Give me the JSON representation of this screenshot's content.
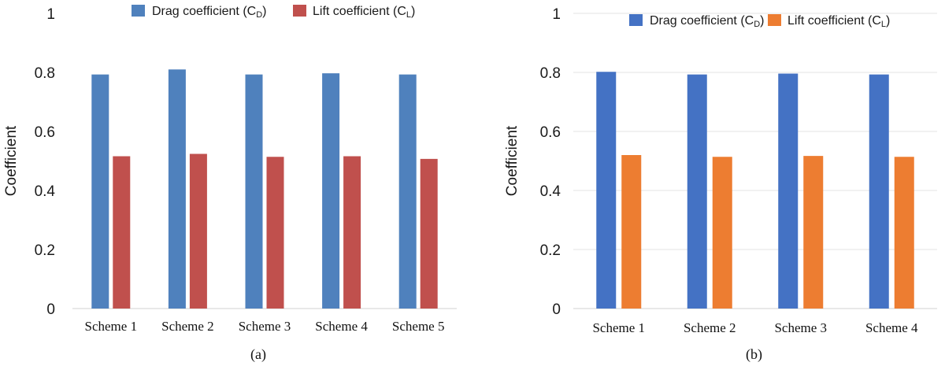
{
  "chart_data": [
    {
      "type": "bar",
      "panel_label": "(a)",
      "categories": [
        "Scheme 1",
        "Scheme 2",
        "Scheme 3",
        "Scheme 4",
        "Scheme 5"
      ],
      "series": [
        {
          "name": "Drag coefficient (C",
          "subscript": "D",
          "close": ")",
          "color": "#4f81bd",
          "values": [
            0.793,
            0.81,
            0.793,
            0.797,
            0.793
          ]
        },
        {
          "name": "Lift coefficient (C",
          "subscript": "L",
          "close": ")",
          "color": "#c0504d",
          "values": [
            0.516,
            0.524,
            0.514,
            0.516,
            0.507
          ]
        }
      ],
      "ylabel": "Coefficient",
      "ylim": [
        0,
        1
      ],
      "yticks": [
        "0",
        "0.2",
        "0.4",
        "0.6",
        "0.8",
        "1"
      ],
      "grid": false,
      "legend": "top"
    },
    {
      "type": "bar",
      "panel_label": "(b)",
      "categories": [
        "Scheme 1",
        "Scheme 2",
        "Scheme 3",
        "Scheme 4"
      ],
      "series": [
        {
          "name": "Drag coefficient (C",
          "subscript": "D",
          "close": ")",
          "color": "#4472c4",
          "values": [
            0.802,
            0.793,
            0.796,
            0.793
          ]
        },
        {
          "name": "Lift coefficient (C",
          "subscript": "L",
          "close": ")",
          "color": "#ed7d31",
          "values": [
            0.52,
            0.514,
            0.517,
            0.514
          ]
        }
      ],
      "ylabel": "Coefficient",
      "ylim": [
        0,
        1
      ],
      "yticks": [
        "0",
        "0.2",
        "0.4",
        "0.6",
        "0.8",
        "1"
      ],
      "grid": true,
      "legend": "top"
    }
  ]
}
